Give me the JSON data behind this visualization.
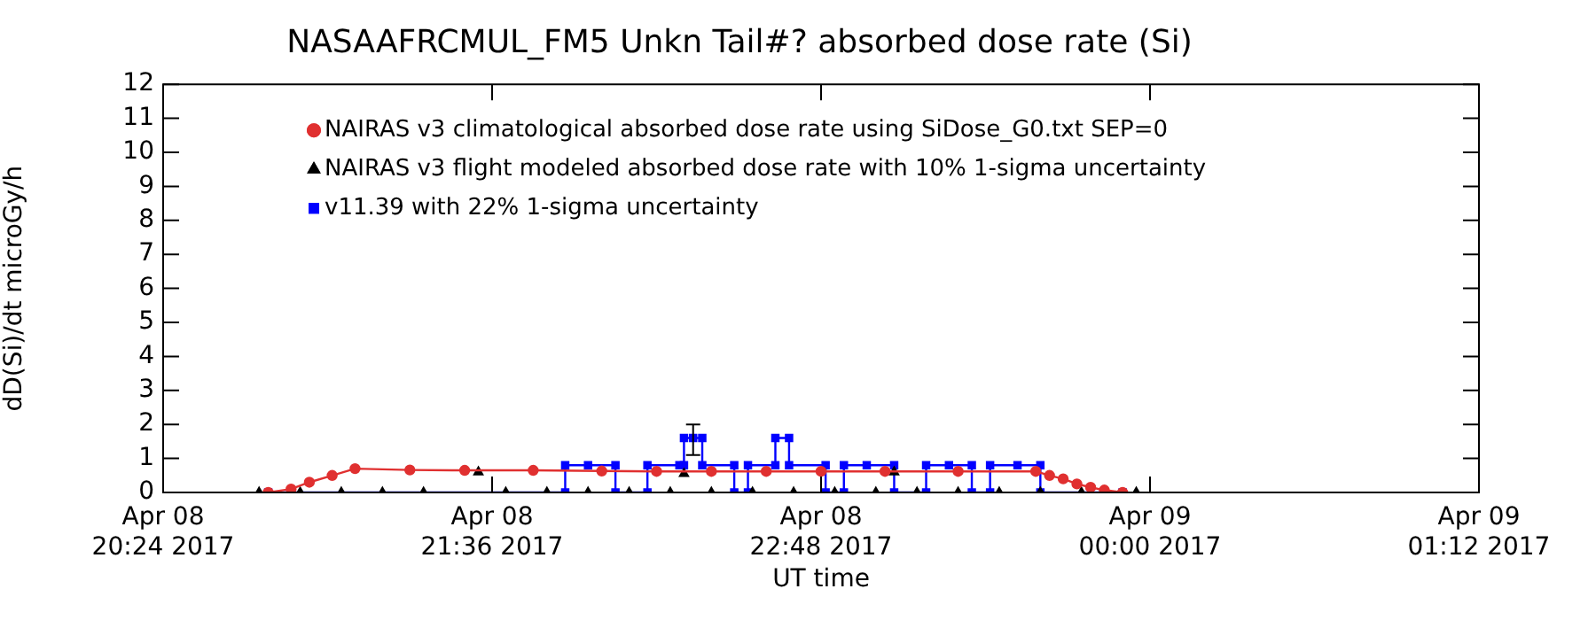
{
  "chart_data": {
    "type": "line",
    "title": "NASAAFRCMUL_FM5 Unkn Tail#? absorbed dose rate (Si)",
    "xlabel": "UT time",
    "ylabel": "dD(Si)/dt microGy/h",
    "xlim": [
      "2017-04-08T20:24",
      "2017-04-09T01:12"
    ],
    "ylim": [
      0,
      12
    ],
    "xticks": [
      {
        "value": "2017-04-08T20:24",
        "label": "Apr 08\n20:24 2017"
      },
      {
        "value": "2017-04-08T21:36",
        "label": "Apr 08\n21:36 2017"
      },
      {
        "value": "2017-04-08T22:48",
        "label": "Apr 08\n22:48 2017"
      },
      {
        "value": "2017-04-09T00:00",
        "label": "Apr 09\n00:00 2017"
      },
      {
        "value": "2017-04-09T01:12",
        "label": "Apr 09\n01:12 2017"
      }
    ],
    "yticks": [
      0,
      1,
      2,
      3,
      4,
      5,
      6,
      7,
      8,
      9,
      10,
      11,
      12
    ],
    "legend": "top left",
    "series": [
      {
        "name": "NAIRAS v3 climatological absorbed dose rate using SiDose_G0.txt SEP=0",
        "type": "line",
        "marker": "circle",
        "color": "#e03030",
        "x": [
          "2017-04-08T20:47",
          "2017-04-08T20:52",
          "2017-04-08T20:56",
          "2017-04-08T21:01",
          "2017-04-08T21:06",
          "2017-04-08T21:18",
          "2017-04-08T21:30",
          "2017-04-08T21:45",
          "2017-04-08T22:00",
          "2017-04-08T22:12",
          "2017-04-08T22:24",
          "2017-04-08T22:36",
          "2017-04-08T22:48",
          "2017-04-08T23:02",
          "2017-04-08T23:18",
          "2017-04-08T23:35",
          "2017-04-08T23:38",
          "2017-04-08T23:41",
          "2017-04-08T23:44",
          "2017-04-08T23:47",
          "2017-04-08T23:50",
          "2017-04-08T23:54"
        ],
        "values": [
          0,
          0.1,
          0.3,
          0.5,
          0.7,
          0.66,
          0.65,
          0.65,
          0.63,
          0.62,
          0.62,
          0.62,
          0.62,
          0.62,
          0.62,
          0.62,
          0.5,
          0.4,
          0.25,
          0.15,
          0.07,
          0
        ]
      },
      {
        "name": "NAIRAS v3 flight modeled absorbed dose rate with 10% 1-sigma uncertainty",
        "type": "scatter",
        "marker": "triangle",
        "color": "#000000",
        "x": [
          "2017-04-08T20:45",
          "2017-04-08T20:54",
          "2017-04-08T21:03",
          "2017-04-08T21:12",
          "2017-04-08T21:21",
          "2017-04-08T21:33",
          "2017-04-08T21:39",
          "2017-04-08T21:48",
          "2017-04-08T21:57",
          "2017-04-08T22:06",
          "2017-04-08T22:15",
          "2017-04-08T22:18",
          "2017-04-08T22:24",
          "2017-04-08T22:33",
          "2017-04-08T22:42",
          "2017-04-08T22:51",
          "2017-04-08T23:00",
          "2017-04-08T23:04",
          "2017-04-08T23:09",
          "2017-04-08T23:18",
          "2017-04-08T23:27",
          "2017-04-08T23:36",
          "2017-04-08T23:45",
          "2017-04-08T23:57"
        ],
        "values": [
          0,
          0,
          0,
          0,
          0,
          0.6,
          0,
          0,
          0,
          0,
          0,
          0.55,
          0,
          0,
          0,
          0,
          0,
          0.6,
          0,
          0,
          0,
          0,
          0,
          0
        ]
      },
      {
        "name": "v11.39 with 22% 1-sigma uncertainty",
        "type": "line",
        "marker": "square",
        "color": "#0000ff",
        "x": [
          "2017-04-08T20:47",
          "2017-04-08T21:52",
          "2017-04-08T21:52",
          "2017-04-08T21:57",
          "2017-04-08T22:03",
          "2017-04-08T22:03",
          "2017-04-08T22:10",
          "2017-04-08T22:10",
          "2017-04-08T22:17",
          "2017-04-08T22:18",
          "2017-04-08T22:18",
          "2017-04-08T22:20",
          "2017-04-08T22:22",
          "2017-04-08T22:22",
          "2017-04-08T22:29",
          "2017-04-08T22:29",
          "2017-04-08T22:32",
          "2017-04-08T22:32",
          "2017-04-08T22:38",
          "2017-04-08T22:38",
          "2017-04-08T22:41",
          "2017-04-08T22:41",
          "2017-04-08T22:49",
          "2017-04-08T22:49",
          "2017-04-08T22:53",
          "2017-04-08T22:53",
          "2017-04-08T22:58",
          "2017-04-08T23:04",
          "2017-04-08T23:04",
          "2017-04-08T23:11",
          "2017-04-08T23:11",
          "2017-04-08T23:16",
          "2017-04-08T23:21",
          "2017-04-08T23:21",
          "2017-04-08T23:25",
          "2017-04-08T23:25",
          "2017-04-08T23:31",
          "2017-04-08T23:36",
          "2017-04-08T23:36",
          "2017-04-08T23:54"
        ],
        "values": [
          0,
          0,
          0.8,
          0.8,
          0.8,
          0,
          0,
          0.8,
          0.8,
          0.8,
          1.6,
          1.6,
          1.6,
          0.8,
          0.8,
          0,
          0,
          0.8,
          0.8,
          1.6,
          1.6,
          0.8,
          0.8,
          0,
          0,
          0.8,
          0.8,
          0.8,
          0,
          0,
          0.8,
          0.8,
          0.8,
          0,
          0,
          0.8,
          0.8,
          0.8,
          0,
          0
        ],
        "errors": [
          null,
          null,
          null,
          null,
          null,
          null,
          null,
          null,
          null,
          null,
          null,
          [
            1.1,
            2.0
          ],
          null,
          null,
          null,
          null,
          null,
          null,
          null,
          null,
          null,
          null,
          null,
          null,
          null,
          null,
          null,
          null,
          null,
          null,
          null,
          null,
          null,
          null,
          null,
          null,
          null,
          null,
          null,
          null
        ]
      }
    ]
  }
}
